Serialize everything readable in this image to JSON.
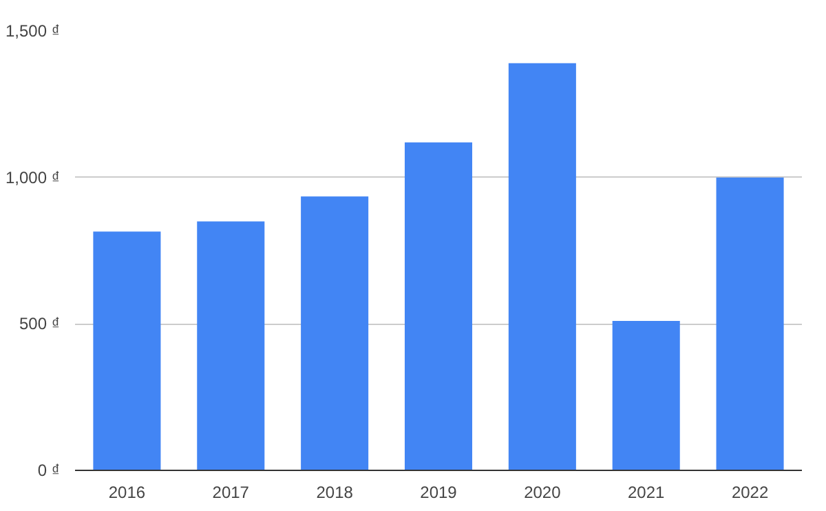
{
  "chart_data": {
    "type": "bar",
    "categories": [
      "2016",
      "2017",
      "2018",
      "2019",
      "2020",
      "2021",
      "2022"
    ],
    "values": [
      815,
      850,
      935,
      1120,
      1390,
      510,
      1000
    ],
    "color": "#4285f4",
    "ylim": [
      0,
      1500
    ],
    "yticks": [
      {
        "value": 0,
        "label": "0 ₫"
      },
      {
        "value": 500,
        "label": "500 ₫"
      },
      {
        "value": 1000,
        "label": "1,000 ₫"
      },
      {
        "value": 1500,
        "label": "1,500 ₫"
      }
    ],
    "grid": "y"
  }
}
